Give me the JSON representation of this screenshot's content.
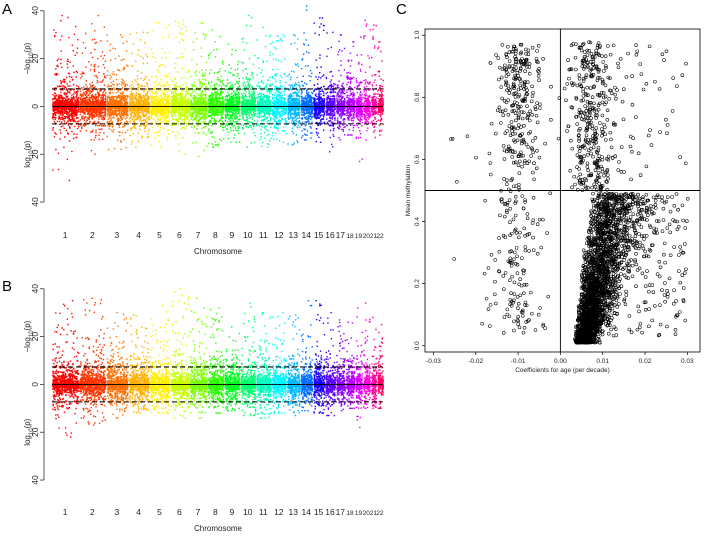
{
  "chart_data": [
    {
      "panel": "A",
      "type": "scatter",
      "xlabel": "Chromosome",
      "ylabel_top": "−log10(p)",
      "ylabel_bottom": "log10(p)",
      "ylim": [
        -45,
        42
      ],
      "yticks": [
        40,
        20,
        0,
        20,
        40
      ],
      "categories": [
        "1",
        "2",
        "3",
        "4",
        "5",
        "6",
        "7",
        "8",
        "9",
        "10",
        "11",
        "12",
        "13",
        "14",
        "15",
        "16",
        "17",
        "18",
        "19",
        "20",
        "21",
        "22"
      ],
      "colors": [
        "#ff0000",
        "#ff3300",
        "#ff7000",
        "#ffb000",
        "#fff000",
        "#c8ff00",
        "#7aff00",
        "#2dff00",
        "#00ff20",
        "#00ff6e",
        "#00ffbc",
        "#00f5ff",
        "#00b8ff",
        "#006eff",
        "#1e00ff",
        "#5a00ff",
        "#8a00ff",
        "#b400ff",
        "#d800ff",
        "#ff00e0",
        "#ff00a0",
        "#ff0060"
      ],
      "threshold": 7.3,
      "peak_top": [
        38,
        38,
        30,
        31,
        35,
        36,
        35,
        32,
        26,
        38,
        33,
        30,
        30,
        42,
        37,
        31,
        30,
        27,
        29,
        36,
        34,
        27
      ],
      "peak_bottom": [
        -31,
        -20,
        -18,
        -17,
        -17,
        -20,
        -21,
        -17,
        -15,
        -17,
        -17,
        -15,
        -16,
        -14,
        -15,
        -19,
        -14,
        -12,
        -23,
        -14,
        -13,
        -12
      ]
    },
    {
      "panel": "B",
      "type": "scatter",
      "xlabel": "Chromosome",
      "ylabel_top": "−log10(p)",
      "ylabel_bottom": "log10(p)",
      "ylim": [
        -45,
        42
      ],
      "yticks": [
        40,
        20,
        0,
        20,
        40
      ],
      "categories": [
        "1",
        "2",
        "3",
        "4",
        "5",
        "6",
        "7",
        "8",
        "9",
        "10",
        "11",
        "12",
        "13",
        "14",
        "15",
        "16",
        "17",
        "18",
        "19",
        "20",
        "21",
        "22"
      ],
      "colors": [
        "#ff0000",
        "#ff3300",
        "#ff7000",
        "#ffb000",
        "#fff000",
        "#c8ff00",
        "#7aff00",
        "#2dff00",
        "#00ff20",
        "#00ff6e",
        "#00ffbc",
        "#00f5ff",
        "#00b8ff",
        "#006eff",
        "#1e00ff",
        "#5a00ff",
        "#8a00ff",
        "#b400ff",
        "#d800ff",
        "#ff00e0",
        "#ff00a0",
        "#ff0060"
      ],
      "threshold": 7.3,
      "peak_top": [
        35,
        36,
        30,
        29,
        33,
        40,
        36,
        32,
        24,
        34,
        30,
        30,
        29,
        35,
        35,
        30,
        27,
        26,
        32,
        34,
        28,
        25
      ],
      "peak_bottom": [
        -22,
        -17,
        -14,
        -12,
        -12,
        -14,
        -14,
        -12,
        -11,
        -13,
        -14,
        -12,
        -13,
        -11,
        -12,
        -13,
        -11,
        -10,
        -18,
        -10,
        -10,
        -10
      ]
    },
    {
      "panel": "C",
      "type": "scatter",
      "xlabel": "Coefficients for age (per decade)",
      "ylabel": "Mean methylation",
      "xlim": [
        -0.032,
        0.033
      ],
      "ylim": [
        -0.02,
        1.02
      ],
      "xticks": [
        "-0.03",
        "-0.02",
        "-0.01",
        "0.00",
        "0.01",
        "0.02",
        "0.03"
      ],
      "xtick_values": [
        -0.03,
        -0.02,
        -0.01,
        0.0,
        0.01,
        0.02,
        0.03
      ],
      "yticks": [
        "0.0",
        "0.2",
        "0.4",
        "0.6",
        "0.8",
        "1.0"
      ],
      "ytick_values": [
        0.0,
        0.2,
        0.4,
        0.6,
        0.8,
        1.0
      ],
      "reference_lines": {
        "x": 0.0,
        "y": 0.5
      },
      "point_style": "open-circle"
    }
  ],
  "labels": {
    "panel_a": "A",
    "panel_b": "B",
    "panel_c": "C"
  }
}
